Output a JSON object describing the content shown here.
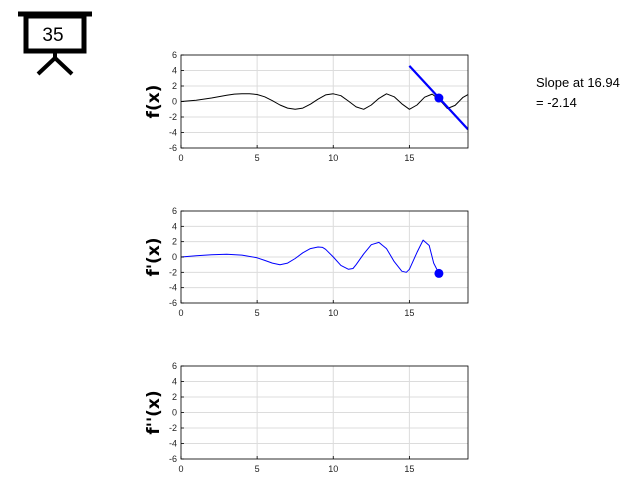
{
  "badge": {
    "number": "35",
    "icon": "presentation-board-icon"
  },
  "slope_annotation": {
    "line1": "Slope at 16.94",
    "line2": "= -2.14"
  },
  "chart_data": [
    {
      "id": "f",
      "type": "line",
      "ylabel": "f(x)",
      "xlim": [
        0,
        18.85
      ],
      "ylim": [
        -6,
        6
      ],
      "xticks": [
        0,
        5,
        10,
        15
      ],
      "yticks": [
        -6,
        -4,
        -2,
        0,
        2,
        4,
        6
      ],
      "grid": true,
      "series": [
        {
          "color": "#000000",
          "x": [
            0,
            1,
            2,
            3,
            3.5,
            4,
            4.5,
            5,
            5.5,
            6,
            6.5,
            7,
            7.5,
            8,
            8.5,
            9,
            9.5,
            10,
            10.5,
            11,
            11.5,
            12,
            12.5,
            13,
            13.5,
            14,
            14.5,
            15,
            15.5,
            16,
            16.5,
            17,
            17.5,
            18,
            18.5,
            18.85
          ],
          "y": [
            0,
            0.15,
            0.45,
            0.8,
            0.95,
            1.0,
            1.0,
            0.9,
            0.6,
            0.1,
            -0.45,
            -0.85,
            -1.0,
            -0.85,
            -0.35,
            0.3,
            0.85,
            1.0,
            0.75,
            0.05,
            -0.7,
            -1.0,
            -0.45,
            0.4,
            1.0,
            0.6,
            -0.3,
            -1.0,
            -0.45,
            0.55,
            0.95,
            0.2,
            -0.9,
            -0.5,
            0.5,
            0.9
          ]
        }
      ],
      "tangent": {
        "color": "#0000ff",
        "point": [
          16.94,
          0.45
        ],
        "x": [
          15,
          18.85
        ],
        "y": [
          4.6,
          -3.6
        ]
      }
    },
    {
      "id": "fprime",
      "type": "line",
      "ylabel": "f'(x)",
      "xlim": [
        0,
        18.85
      ],
      "ylim": [
        -6,
        6
      ],
      "xticks": [
        0,
        5,
        10,
        15
      ],
      "yticks": [
        -6,
        -4,
        -2,
        0,
        2,
        4,
        6
      ],
      "grid": true,
      "series": [
        {
          "color": "#0000ff",
          "x": [
            0,
            1,
            2,
            3,
            4,
            5,
            5.5,
            6,
            6.5,
            7,
            7.5,
            8,
            8.5,
            9,
            9.3,
            9.5,
            10,
            10.5,
            11,
            11.3,
            11.5,
            12,
            12.5,
            13,
            13.5,
            14,
            14.5,
            14.8,
            15,
            15.5,
            15.9,
            16.3,
            16.6,
            16.94
          ],
          "y": [
            0,
            0.15,
            0.3,
            0.35,
            0.25,
            -0.1,
            -0.45,
            -0.8,
            -1.0,
            -0.8,
            -0.2,
            0.55,
            1.1,
            1.3,
            1.25,
            1.0,
            0.0,
            -1.1,
            -1.6,
            -1.5,
            -1.0,
            0.4,
            1.6,
            1.9,
            1.1,
            -0.6,
            -1.85,
            -2.0,
            -1.6,
            0.6,
            2.2,
            1.5,
            -0.8,
            -2.14
          ]
        }
      ],
      "marker": {
        "color": "#0000ff",
        "point": [
          16.94,
          -2.14
        ]
      }
    },
    {
      "id": "fsecond",
      "type": "line",
      "ylabel": "f''(x)",
      "xlim": [
        0,
        18.85
      ],
      "ylim": [
        -6,
        6
      ],
      "xticks": [
        0,
        5,
        10,
        15
      ],
      "yticks": [
        -6,
        -4,
        -2,
        0,
        2,
        4,
        6
      ],
      "grid": true,
      "series": []
    }
  ]
}
